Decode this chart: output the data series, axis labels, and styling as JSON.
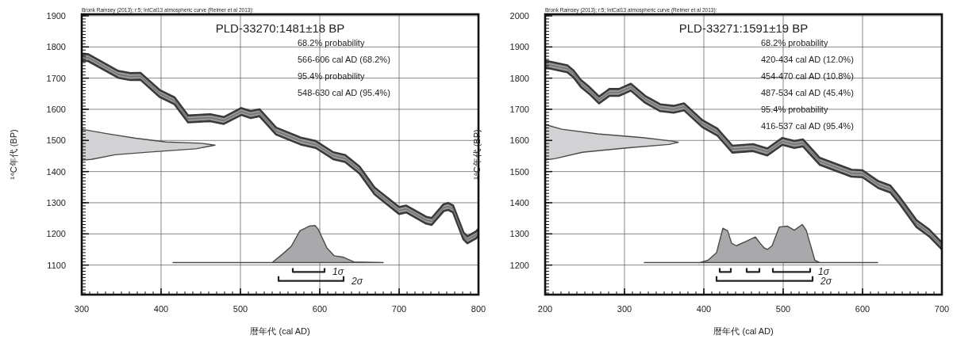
{
  "chart_data": [
    {
      "type": "line",
      "title": "PLD-33270:1481±18 BP",
      "xlabel": "暦年代 (cal AD)",
      "ylabel": "¹⁴C年代 (BP)",
      "annotations": [
        "Bronk Ramsey (2013); r:5; IntCal13 atmospheric curve (Reimer et al 2013):",
        "68.2% probability",
        "566-606 cal AD (68.2%)",
        "95.4% probability",
        "548-630 cal AD (95.4%)"
      ],
      "xlim": [
        300,
        800
      ],
      "ylim": [
        1005,
        1905
      ],
      "xticks": [
        300,
        400,
        500,
        600,
        700,
        800
      ],
      "yticks": [
        1100,
        1200,
        1300,
        1400,
        1500,
        1600,
        1700,
        1800,
        1900
      ],
      "grid": true,
      "series": [
        {
          "color": "#747476",
          "x": [
            300,
            308,
            346,
            361,
            374,
            398,
            417,
            434,
            462,
            479,
            501,
            513,
            524,
            545,
            576,
            595,
            617,
            632,
            650,
            669,
            700,
            709,
            734,
            741,
            756,
            762,
            768,
            781,
            786,
            797,
            800
          ],
          "values": [
            1766,
            1766,
            1712,
            1705,
            1706,
            1651,
            1627,
            1569,
            1573,
            1564,
            1593,
            1583,
            1589,
            1530,
            1498,
            1487,
            1451,
            1442,
            1405,
            1338,
            1275,
            1280,
            1244,
            1240,
            1284,
            1288,
            1280,
            1194,
            1181,
            1197,
            1205
          ],
          "lower": [
            1755,
            1755,
            1701,
            1694,
            1695,
            1640,
            1616,
            1558,
            1562,
            1553,
            1582,
            1572,
            1578,
            1519,
            1487,
            1476,
            1440,
            1431,
            1394,
            1327,
            1264,
            1269,
            1233,
            1229,
            1273,
            1277,
            1269,
            1183,
            1170,
            1186,
            1194
          ],
          "upper": [
            1777,
            1777,
            1723,
            1716,
            1717,
            1662,
            1638,
            1580,
            1584,
            1575,
            1604,
            1594,
            1600,
            1541,
            1509,
            1498,
            1462,
            1453,
            1416,
            1349,
            1286,
            1291,
            1255,
            1251,
            1295,
            1299,
            1291,
            1205,
            1192,
            1208,
            1216
          ]
        },
        {
          "type": "area",
          "color": "#a9a9ab",
          "x": [
            415,
            540,
            553,
            564,
            575,
            587,
            594,
            598,
            609,
            618,
            630,
            643,
            680
          ],
          "values": [
            1108,
            1108,
            1135,
            1160,
            1210,
            1225,
            1227,
            1215,
            1155,
            1130,
            1125,
            1110,
            1108
          ]
        },
        {
          "type": "area",
          "color": "#d2d2d4",
          "x": [
            300,
            331,
            368,
            406,
            451,
            468,
            444,
            387,
            342,
            312,
            300
          ],
          "values": [
            1536,
            1522,
            1507,
            1495,
            1491,
            1485,
            1473,
            1463,
            1454,
            1439,
            1437
          ]
        },
        {
          "name": "1σ",
          "color": "#222222",
          "x": [
            566,
            566,
            606,
            606
          ],
          "values": [
            1090,
            1078,
            1078,
            1090
          ]
        },
        {
          "name": "2σ",
          "color": "#222222",
          "x": [
            548,
            548,
            630,
            630
          ],
          "values": [
            1064,
            1049,
            1049,
            1064
          ]
        }
      ]
    },
    {
      "type": "line",
      "title": "PLD-33271:1591±19 BP",
      "xlabel": "暦年代 (cal AD)",
      "ylabel": "¹⁴C年代 (BP)",
      "annotations": [
        "Bronk Ramsey (2013); r:5; IntCal13 atmospheric curve (Reimer et al 2013):",
        "68.2% probability",
        "420-434 cal AD (12.0%)",
        "454-470 cal AD (10.8%)",
        "487-534 cal AD (45.4%)",
        "95.4% probability",
        "416-537 cal AD (95.4%)"
      ],
      "xlim": [
        200,
        700
      ],
      "ylim": [
        1105,
        2005
      ],
      "xticks": [
        200,
        300,
        400,
        500,
        600,
        700
      ],
      "yticks": [
        1200,
        1300,
        1400,
        1500,
        1600,
        1700,
        1800,
        1900,
        2000
      ],
      "grid": true,
      "series": [
        {
          "color": "#747476",
          "x": [
            200,
            228,
            236,
            245,
            255,
            268,
            281,
            293,
            308,
            326,
            345,
            362,
            375,
            398,
            417,
            436,
            462,
            480,
            499,
            514,
            525,
            546,
            586,
            600,
            620,
            635,
            646,
            668,
            684,
            700
          ],
          "values": [
            1845,
            1830,
            1813,
            1783,
            1762,
            1730,
            1754,
            1754,
            1771,
            1732,
            1705,
            1700,
            1708,
            1654,
            1627,
            1572,
            1577,
            1563,
            1597,
            1587,
            1592,
            1533,
            1495,
            1493,
            1458,
            1444,
            1410,
            1333,
            1303,
            1261
          ],
          "lower": [
            1834,
            1819,
            1802,
            1772,
            1751,
            1719,
            1743,
            1743,
            1760,
            1721,
            1694,
            1689,
            1697,
            1643,
            1616,
            1561,
            1566,
            1552,
            1586,
            1576,
            1581,
            1522,
            1484,
            1482,
            1447,
            1433,
            1399,
            1322,
            1292,
            1250
          ],
          "upper": [
            1856,
            1841,
            1824,
            1794,
            1773,
            1741,
            1765,
            1765,
            1782,
            1743,
            1716,
            1711,
            1719,
            1665,
            1638,
            1583,
            1588,
            1574,
            1608,
            1598,
            1603,
            1544,
            1506,
            1504,
            1469,
            1455,
            1421,
            1344,
            1314,
            1272
          ]
        },
        {
          "type": "area",
          "color": "#a9a9ab",
          "x": [
            325,
            395,
            405,
            416,
            424,
            430,
            435,
            441,
            454,
            465,
            471,
            476,
            480,
            486,
            495,
            505,
            514,
            524,
            529,
            540,
            546,
            619
          ],
          "values": [
            1208,
            1208,
            1215,
            1240,
            1318,
            1310,
            1270,
            1262,
            1277,
            1290,
            1270,
            1255,
            1250,
            1262,
            1322,
            1325,
            1312,
            1330,
            1312,
            1215,
            1208,
            1208
          ]
        },
        {
          "type": "area",
          "color": "#d2d2d4",
          "x": [
            200,
            221,
            266,
            323,
            360,
            368,
            356,
            303,
            247,
            213,
            200
          ],
          "values": [
            1651,
            1636,
            1621,
            1609,
            1598,
            1594,
            1587,
            1576,
            1562,
            1542,
            1537
          ]
        },
        {
          "name": "1σ",
          "color": "#222222",
          "x": [
            420,
            420,
            434,
            434,
            null,
            454,
            454,
            470,
            470,
            null,
            487,
            487,
            534,
            534
          ],
          "values": [
            1190,
            1178,
            1178,
            1190,
            null,
            1190,
            1178,
            1178,
            1190,
            null,
            1190,
            1178,
            1178,
            1190
          ]
        },
        {
          "name": "2σ",
          "color": "#222222",
          "x": [
            416,
            416,
            537,
            537
          ],
          "values": [
            1164,
            1149,
            1149,
            1164
          ]
        }
      ]
    }
  ]
}
